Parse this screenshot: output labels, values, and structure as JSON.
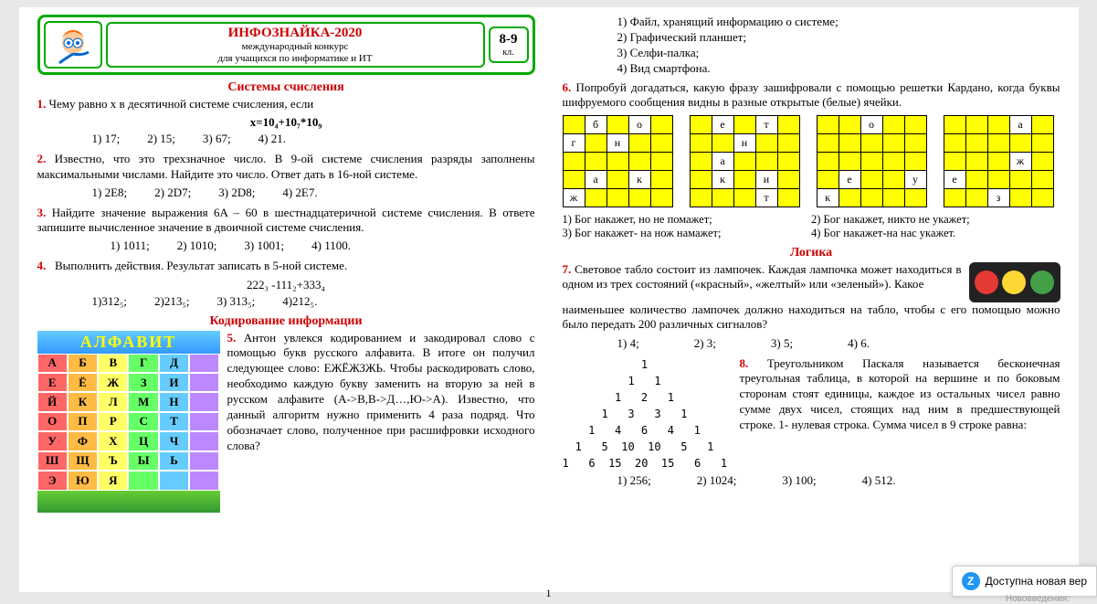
{
  "header": {
    "title": "ИНФОЗНАЙКА-2020",
    "sub1": "международный конкурс",
    "sub2": "для учащихся по информатике и ИТ",
    "grade": "8-9",
    "grade_sub": "кл."
  },
  "sections": {
    "s1": "Системы счисления",
    "s2": "Кодирование информации",
    "s3": "Логика"
  },
  "alphabet": {
    "title": "АЛФАВИТ",
    "letters": [
      "А",
      "Б",
      "В",
      "Г",
      "Д",
      "",
      "Е",
      "Ё",
      "Ж",
      "З",
      "И",
      "",
      "Й",
      "К",
      "Л",
      "М",
      "Н",
      "",
      "О",
      "П",
      "Р",
      "С",
      "Т",
      "",
      "У",
      "Ф",
      "Х",
      "Ц",
      "Ч",
      "",
      "Ш",
      "Щ",
      "Ъ",
      "Ы",
      "Ь",
      "",
      "Э",
      "Ю",
      "Я",
      "",
      "",
      ""
    ],
    "colors": [
      "#f66",
      "#fb4",
      "#ff6",
      "#6f6",
      "#6cf",
      "#b8f"
    ]
  },
  "q1": {
    "num": "1.",
    "text": "Чему равно x в десятичной системе счисления, если",
    "formula": "x=10₄+10₇*10₉",
    "opts": [
      "1) 17;",
      "2) 15;",
      "3) 67;",
      "4) 21."
    ]
  },
  "q2": {
    "num": "2.",
    "text": "Известно, что это трехзначное число. В 9-ой системе счисления разряды заполнены максимальными числами. Найдите это число. Ответ дать в 16-ной системе.",
    "opts": [
      "1) 2E8;",
      "2) 2D7;",
      "3) 2D8;",
      "4) 2E7."
    ]
  },
  "q3": {
    "num": "3.",
    "text": "Найдите значение выражения 6A – 60 в шестнадцатеричной системе счисления. В ответе запишите вычисленное значение в двоичной системе счисления.",
    "opts": [
      "1) 1011;",
      "2) 1010;",
      "3) 1001;",
      "4) 1100."
    ]
  },
  "q4": {
    "num": "4.",
    "text": "Выполнить действия. Результат записать в 5-ной системе.",
    "formula": "222₃ -111₂+333₄",
    "opts": [
      "1)312₅;",
      "2)213₅;",
      "3) 313₅;",
      "4)212₅."
    ]
  },
  "q5": {
    "num": "5.",
    "text": "Антон увлекся кодированием и закодировал слово с помощью букв русского алфавита. В итоге он получил следующее слово: ЕЖЁЖЗЖЬ. Чтобы раскодировать слово, необходимо каждую букву заменить на вторую за ней в русском алфавите (А->В,В->Д…,Ю->А). Известно, что данный алгоритм нужно применить 4 раза подряд. Что обозначает слово, полученное при расшифровки исходного слова?"
  },
  "q5pre": {
    "opts": [
      "1) Файл, хранящий информацию о системе;",
      "2) Графический планшет;",
      "3) Селфи-палка;",
      "4) Вид смартфона."
    ]
  },
  "q6": {
    "num": "6.",
    "text": "Попробуй догадаться, какую фразу зашифровали с помощью решетки Кардано, когда буквы шифруемого сообщения видны в разные открытые (белые) ячейки.",
    "grids": [
      [
        [
          "y",
          ""
        ],
        [
          "",
          "б"
        ],
        [
          "y",
          ""
        ],
        [
          "",
          "о"
        ],
        [
          "y",
          ""
        ]
      ],
      [
        [
          "",
          "г"
        ],
        [
          "y",
          ""
        ],
        [
          "",
          "н"
        ],
        [
          "y",
          ""
        ],
        [
          "y",
          ""
        ]
      ],
      [
        [
          "y",
          ""
        ],
        [
          "y",
          ""
        ],
        [
          "y",
          ""
        ],
        [
          "y",
          ""
        ],
        [
          "y",
          ""
        ]
      ],
      [
        [
          "y",
          ""
        ],
        [
          "",
          "а"
        ],
        [
          "y",
          ""
        ],
        [
          "",
          "к"
        ],
        [
          "y",
          ""
        ]
      ],
      [
        [
          "",
          "ж"
        ],
        [
          "y",
          ""
        ],
        [
          "y",
          ""
        ],
        [
          "y",
          ""
        ],
        [
          "y",
          ""
        ]
      ]
    ],
    "grid2": [
      [
        [
          "y",
          ""
        ],
        [
          "",
          "е"
        ],
        [
          "y",
          ""
        ],
        [
          "",
          "т"
        ],
        [
          "y",
          ""
        ]
      ],
      [
        [
          "y",
          ""
        ],
        [
          "y",
          ""
        ],
        [
          "",
          "н"
        ],
        [
          "y",
          ""
        ],
        [
          "y",
          ""
        ]
      ],
      [
        [
          "y",
          ""
        ],
        [
          "",
          "а"
        ],
        [
          "y",
          ""
        ],
        [
          "y",
          ""
        ],
        [
          "y",
          ""
        ]
      ],
      [
        [
          "y",
          ""
        ],
        [
          "",
          "к"
        ],
        [
          "y",
          ""
        ],
        [
          "",
          "и"
        ],
        [
          "y",
          ""
        ]
      ],
      [
        [
          "y",
          ""
        ],
        [
          "y",
          ""
        ],
        [
          "y",
          ""
        ],
        [
          "",
          "т"
        ],
        [
          "y",
          ""
        ]
      ]
    ],
    "grid3": [
      [
        [
          "y",
          ""
        ],
        [
          "y",
          ""
        ],
        [
          "",
          "о"
        ],
        [
          "y",
          ""
        ],
        [
          "y",
          ""
        ]
      ],
      [
        [
          "y",
          ""
        ],
        [
          "y",
          ""
        ],
        [
          "y",
          ""
        ],
        [
          "y",
          ""
        ],
        [
          "y",
          ""
        ]
      ],
      [
        [
          "y",
          ""
        ],
        [
          "y",
          ""
        ],
        [
          "y",
          ""
        ],
        [
          "y",
          ""
        ],
        [
          "y",
          ""
        ]
      ],
      [
        [
          "y",
          ""
        ],
        [
          "",
          "е"
        ],
        [
          "y",
          ""
        ],
        [
          "y",
          ""
        ],
        [
          "",
          "у"
        ]
      ],
      [
        [
          "",
          "к"
        ],
        [
          "y",
          ""
        ],
        [
          "y",
          ""
        ],
        [
          "y",
          ""
        ],
        [
          "y",
          ""
        ]
      ]
    ],
    "grid4": [
      [
        [
          "y",
          ""
        ],
        [
          "y",
          ""
        ],
        [
          "y",
          ""
        ],
        [
          "",
          "а"
        ],
        [
          "y",
          ""
        ]
      ],
      [
        [
          "y",
          ""
        ],
        [
          "y",
          ""
        ],
        [
          "y",
          ""
        ],
        [
          "y",
          ""
        ],
        [
          "y",
          ""
        ]
      ],
      [
        [
          "y",
          ""
        ],
        [
          "y",
          ""
        ],
        [
          "y",
          ""
        ],
        [
          "",
          "ж"
        ],
        [
          "y",
          ""
        ]
      ],
      [
        [
          "",
          "е"
        ],
        [
          "y",
          ""
        ],
        [
          "y",
          ""
        ],
        [
          "y",
          ""
        ],
        [
          "y",
          ""
        ]
      ],
      [
        [
          "y",
          ""
        ],
        [
          "y",
          ""
        ],
        [
          "",
          "з"
        ],
        [
          "y",
          ""
        ],
        [
          "y",
          ""
        ]
      ]
    ],
    "opts": [
      "1) Бог накажет, но не помажет;",
      "2) Бог накажет, никто не укажет;",
      "3) Бог накажет- на нож намажет;",
      "4) Бог накажет-на нас укажет."
    ]
  },
  "q7": {
    "num": "7.",
    "text_a": "Световое табло состоит из лампочек. Каждая лампочка может находиться в одном из трех состояний («красный», «желтый» или «зеленый»). Какое",
    "text_b": "наименьшее количество лампочек должно находиться на табло, чтобы с его помощью можно было передать   200 различных сигналов?",
    "opts": [
      "1)  4;",
      "2) 3;",
      "3) 5;",
      "4) 6."
    ],
    "lights": [
      "#e53935",
      "#fdd835",
      "#43a047"
    ]
  },
  "q8": {
    "num": "8.",
    "title": "Треугольником      Паскаля",
    "text": "называется бесконечная треугольная таблица, в которой на вершине и по боковым сторонам стоят единицы, каждое из остальных чисел равно сумме двух чисел, стоящих над ним в предшествующей строке. 1- нулевая строка. Сумма чисел в 9 строке равна:",
    "pascal": "1\n1   1\n1   2   1\n1   3   3   1\n1   4   6   4   1\n1   5  10  10   5   1\n1   6  15  20  15   6   1",
    "opts": [
      "1) 256;",
      "2) 1024;",
      "3) 100;",
      "4) 512."
    ]
  },
  "pagenum": "1",
  "toast": "Доступна новая вер",
  "snippet": "Нововведения:"
}
